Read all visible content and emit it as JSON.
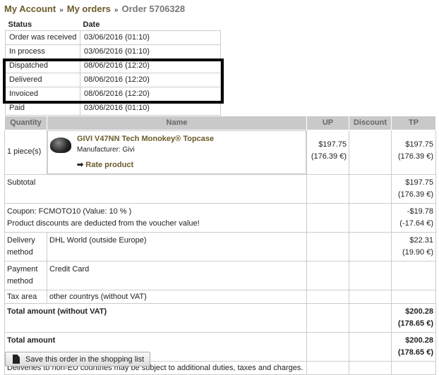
{
  "breadcrumb": {
    "account": "My Account",
    "orders": "My orders",
    "current": "Order 5706328",
    "sep": "»"
  },
  "status_table": {
    "headers": [
      "Status",
      "Date"
    ],
    "rows": [
      [
        "Order was received",
        "03/06/2016 (01:10)"
      ],
      [
        "In process",
        "03/06/2016 (01:10)"
      ],
      [
        "Dispatched",
        "08/06/2016 (12:20)"
      ],
      [
        "Delivered",
        "08/06/2016 (12:20)"
      ],
      [
        "Invoiced",
        "08/06/2016 (12:20)"
      ],
      [
        "Paid",
        "03/06/2016 (01:10)"
      ]
    ]
  },
  "order": {
    "headers": [
      "Quantity",
      "Name",
      "UP",
      "Discount",
      "TP"
    ],
    "product": {
      "qty": "1 piece(s)",
      "name": "GIVI V47NN Tech Monokey® Topcase",
      "manufacturer": "Manufacturer: Givi",
      "rate": "Rate product",
      "up": "$197.75",
      "up_eur": "(176.39 €)",
      "tp": "$197.75",
      "tp_eur": "(176.39 €)"
    },
    "subtotal": {
      "label": "Subtotal",
      "usd": "$197.75",
      "eur": "(176.39 €)"
    },
    "coupon": {
      "label": "Coupon: FCMOTO10 (Value: 10 % )",
      "note": "Product discounts are deducted from the voucher value!",
      "usd": "-$19.78",
      "eur": "(-17.64 €)"
    },
    "delivery": {
      "label": "Delivery method",
      "value": "DHL World (outside Europe)",
      "usd": "$22.31",
      "eur": "(19.90 €)"
    },
    "payment": {
      "label": "Payment method",
      "value": "Credit Card"
    },
    "tax": {
      "label": "Tax area",
      "value": "other countrys (without VAT)"
    },
    "total_novat": {
      "label": "Total amount (without VAT)",
      "usd": "$200.28",
      "eur": "(178.65 €)"
    },
    "total": {
      "label": "Total amount",
      "usd": "$200.28",
      "eur": "(178.65 €)"
    },
    "note": "Deliveries to non-EU countries may be subject to additional duties, taxes and charges."
  },
  "save_button": "Save this order in the shopping list"
}
